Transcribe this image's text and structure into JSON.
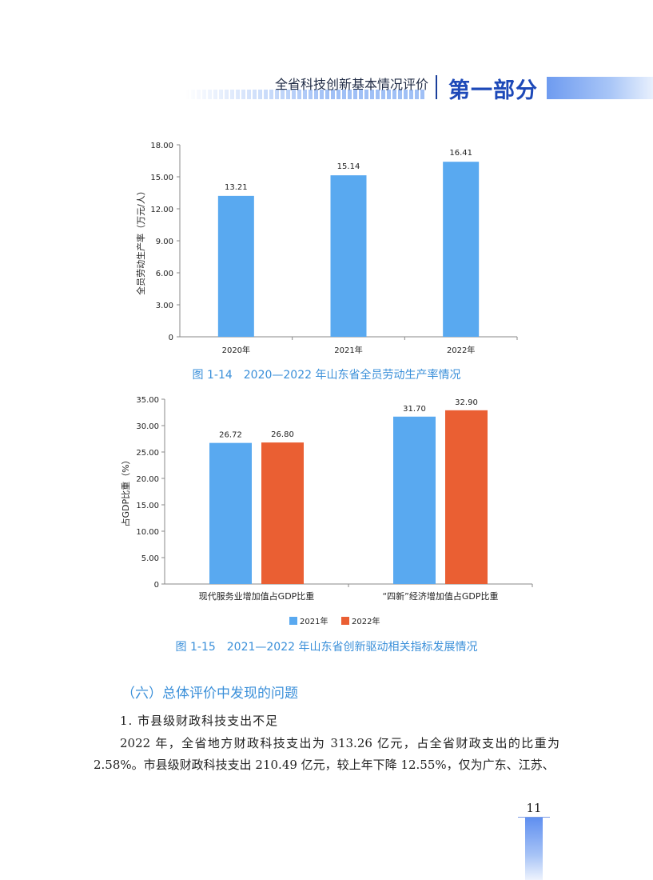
{
  "header": {
    "title": "全省科技创新基本情况评价",
    "part": "第一部分"
  },
  "figures": [
    {
      "caption": "图 1-14　2020—2022 年山东省全员劳动生产率情况"
    },
    {
      "caption": "图 1-15　2021—2022 年山东省创新驱动相关指标发展情况"
    }
  ],
  "chart_data": [
    {
      "type": "bar",
      "categories": [
        "2020年",
        "2021年",
        "2022年"
      ],
      "values": [
        13.21,
        15.14,
        16.41
      ],
      "value_labels": [
        "13.21",
        "15.14",
        "16.41"
      ],
      "ylabel": "全员劳动生产率（万元/人）",
      "ylim": [
        0,
        18
      ],
      "yticks": [
        "0",
        "3.00",
        "6.00",
        "9.00",
        "12.00",
        "15.00",
        "18.00"
      ],
      "grid": false,
      "color": "#59a9f0"
    },
    {
      "type": "bar",
      "categories": [
        "现代服务业增加值占GDP比重",
        "“四新”经济增加值占GDP比重"
      ],
      "series": [
        {
          "name": "2021年",
          "values": [
            26.72,
            31.7
          ],
          "value_labels": [
            "26.72",
            "31.70"
          ],
          "color": "#59a9f0"
        },
        {
          "name": "2022年",
          "values": [
            26.8,
            32.9
          ],
          "value_labels": [
            "26.80",
            "32.90"
          ],
          "color": "#ea5f33"
        }
      ],
      "ylabel": "占GDP比重（%）",
      "ylim": [
        0,
        35
      ],
      "yticks": [
        "0",
        "5.00",
        "10.00",
        "15.00",
        "20.00",
        "25.00",
        "30.00",
        "35.00"
      ],
      "grid": false,
      "legend": "bottom-center"
    }
  ],
  "section": {
    "heading": "（六）总体评价中发现的问题",
    "subheading": "1. 市县级财政科技支出不足",
    "paragraph": "2022 年，全省地方财政科技支出为 313.26 亿元，占全省财政支出的比重为 2.58%。市县级财政科技支出 210.49 亿元，较上年下降 12.55%，仅为广东、江苏、"
  },
  "page_number": "11"
}
